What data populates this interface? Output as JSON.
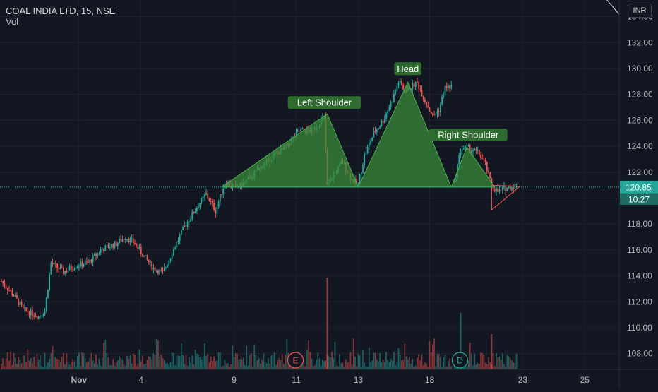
{
  "legend": {
    "symbol_line": "COAL INDIA LTD, 15, NSE",
    "volume_label": "Vol"
  },
  "currency_button": "INR",
  "colors": {
    "background": "#131722",
    "up": "#26a69a",
    "down": "#ef5350",
    "pattern_fill": "#3a8a3a",
    "label_bg": "#2e6b2e",
    "price_tag": "#26a69a"
  },
  "chart_data": {
    "type": "candlestick",
    "price_axis": {
      "ticks": [
        "108.00",
        "110.00",
        "112.00",
        "114.00",
        "116.00",
        "118.00",
        "120.00",
        "122.00",
        "124.00",
        "126.00",
        "128.00",
        "130.00",
        "132.00",
        "134.00"
      ],
      "range": [
        106.9,
        135.5
      ]
    },
    "time_axis": {
      "ticks": [
        "Nov",
        "4",
        "9",
        "11",
        "13",
        "18",
        "23",
        "25"
      ]
    },
    "last_price": "120.85",
    "countdown": "10:27",
    "pattern": {
      "name": "Head and Shoulders",
      "labels": [
        "Left Shoulder",
        "Head",
        "Right Shoulder"
      ],
      "points": [
        {
          "time_index": 71,
          "price": 120.8
        },
        {
          "time_index": 105,
          "price": 126.5
        },
        {
          "time_index": 115,
          "price": 120.85
        },
        {
          "time_index": 131,
          "price": 128.95
        },
        {
          "time_index": 145,
          "price": 120.85
        },
        {
          "time_index": 150,
          "price": 123.95
        },
        {
          "time_index": 159,
          "price": 120.85
        }
      ],
      "wedge": [
        {
          "time_index": 158,
          "price": 121.0
        },
        {
          "time_index": 167,
          "price": 121.0
        },
        {
          "time_index": 158,
          "price": 119.8
        }
      ]
    },
    "trendline": [
      {
        "time_index": 103,
        "price": 135.5
      },
      {
        "time_index": 199,
        "price": 134.6
      }
    ],
    "event_markers": [
      "E",
      "D"
    ],
    "price_path": [
      [
        0,
        113.6
      ],
      [
        4,
        112.5
      ],
      [
        7,
        111.4
      ],
      [
        12,
        110.9
      ],
      [
        14,
        111.3
      ],
      [
        16,
        115.0
      ],
      [
        20,
        114.3
      ],
      [
        24,
        114.8
      ],
      [
        28,
        115.0
      ],
      [
        32,
        116.0
      ],
      [
        37,
        116.5
      ],
      [
        40,
        117.0
      ],
      [
        43,
        116.5
      ],
      [
        46,
        115.5
      ],
      [
        49,
        114.6
      ],
      [
        52,
        114.2
      ],
      [
        55,
        115.8
      ],
      [
        59,
        117.8
      ],
      [
        63,
        119.3
      ],
      [
        66,
        120.3
      ],
      [
        69,
        119.0
      ],
      [
        72,
        121.2
      ],
      [
        76,
        120.8
      ],
      [
        80,
        121.5
      ],
      [
        84,
        122.5
      ],
      [
        88,
        123.3
      ],
      [
        92,
        124.0
      ],
      [
        96,
        125.2
      ],
      [
        100,
        125.2
      ],
      [
        104,
        126.2
      ],
      [
        105,
        120.9
      ],
      [
        107,
        121.8
      ],
      [
        110,
        122.8
      ],
      [
        113,
        121.4
      ],
      [
        115,
        121.1
      ],
      [
        117,
        123.3
      ],
      [
        120,
        125.0
      ],
      [
        123,
        126.0
      ],
      [
        126,
        127.6
      ],
      [
        128,
        129.0
      ],
      [
        130,
        128.3
      ],
      [
        132,
        128.6
      ],
      [
        134,
        128.9
      ],
      [
        136,
        127.8
      ],
      [
        139,
        126.3
      ],
      [
        141,
        126.8
      ],
      [
        143,
        128.5
      ],
      [
        145,
        128.6
      ]
    ],
    "price_path_2": [
      [
        146,
        121.2
      ],
      [
        148,
        123.8
      ],
      [
        150,
        123.9
      ],
      [
        152,
        123.7
      ],
      [
        154,
        123.4
      ],
      [
        156,
        122.6
      ],
      [
        158,
        120.9
      ],
      [
        160,
        120.5
      ],
      [
        163,
        120.8
      ],
      [
        166,
        121.0
      ]
    ]
  }
}
